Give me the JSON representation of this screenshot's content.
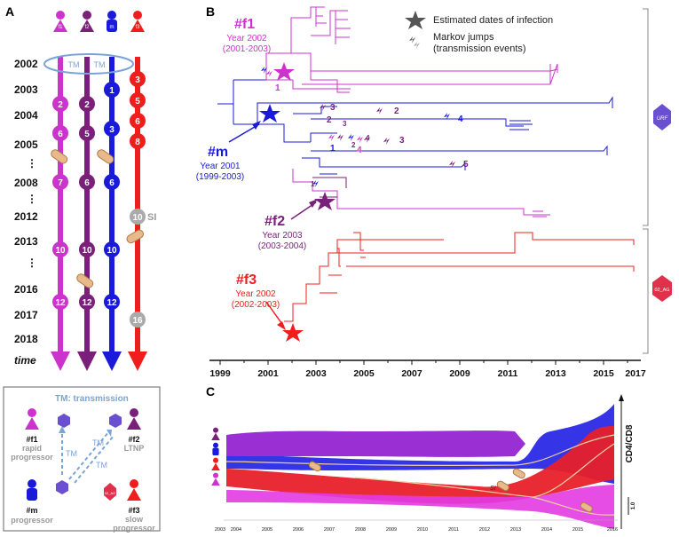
{
  "panels": {
    "a": "A",
    "b": "B",
    "c": "C"
  },
  "patients": {
    "f1": {
      "code": "f1",
      "label": "#f1",
      "status_line1": "rapid",
      "status_line2": "progressor",
      "color": "#cc33cc"
    },
    "f2": {
      "code": "f2",
      "label": "#f2",
      "status_line1": "LTNP",
      "color": "#7a1f7a"
    },
    "m": {
      "code": "m",
      "label": "#m",
      "status_line1": "progressor",
      "color": "#1a1adb"
    },
    "f3": {
      "code": "f3",
      "label": "#f3",
      "status_line1": "slow",
      "status_line2": "progressor",
      "color": "#f01d1d"
    }
  },
  "panel_a": {
    "years": [
      "2002",
      "2003",
      "2004",
      "2005",
      "⋮",
      "2008",
      "⋮",
      "2012",
      "2013",
      "⋮",
      "2016",
      "2017",
      "2018"
    ],
    "time_label": "time",
    "tm_label": "TM",
    "samples": {
      "f1": [
        "2",
        "6",
        "7",
        "10",
        "12"
      ],
      "f2": [
        "2",
        "5",
        "6",
        "10",
        "12"
      ],
      "m": [
        "1",
        "3",
        "6",
        "10",
        "12"
      ],
      "f3": [
        "3",
        "5",
        "6",
        "8",
        "10",
        "16"
      ]
    },
    "si_label": "SI"
  },
  "legend": {
    "title": "TM: transmission",
    "tm": "TM",
    "urf": "URF",
    "crf": "02_AG"
  },
  "panel_b": {
    "legend_star": "Estimated dates of infection",
    "legend_jumps_line1": "Markov jumps",
    "legend_jumps_line2": "(transmission events)",
    "infection": {
      "f1": {
        "label": "#f1",
        "year": "Year 2002",
        "range": "(2001-2003)"
      },
      "m": {
        "label": "#m",
        "year": "Year 2001",
        "range": "(1999-2003)"
      },
      "f2": {
        "label": "#f2",
        "year": "Year 2003",
        "range": "(2003-2004)"
      },
      "f3": {
        "label": "#f3",
        "year": "Year 2002",
        "range": "(2002-2003)"
      }
    },
    "jump_numbers": [
      "1",
      "2",
      "3",
      "4",
      "5",
      "1",
      "2",
      "3",
      "4",
      "3",
      "1",
      "4",
      "2"
    ],
    "axis_years": [
      "1999",
      "2001",
      "2003",
      "2005",
      "2007",
      "2009",
      "2011",
      "2013",
      "2015",
      "2017"
    ],
    "clade_labels": {
      "urf": "URF",
      "crf": "02_AG"
    }
  },
  "panel_c": {
    "ylabel": "CD4/CD8",
    "scale": "1.0",
    "si_label": "SI",
    "axis_years": [
      "2003",
      "2004",
      "2005",
      "2006",
      "2007",
      "2008",
      "2009",
      "2010",
      "2011",
      "2012",
      "2013",
      "2014",
      "2015",
      "2016"
    ]
  },
  "colors": {
    "f1": "#cc33cc",
    "f2": "#7a1f7a",
    "m": "#1a1adb",
    "f3": "#f01d1d",
    "tm": "#7aa4d6",
    "grey_star": "#555555"
  }
}
